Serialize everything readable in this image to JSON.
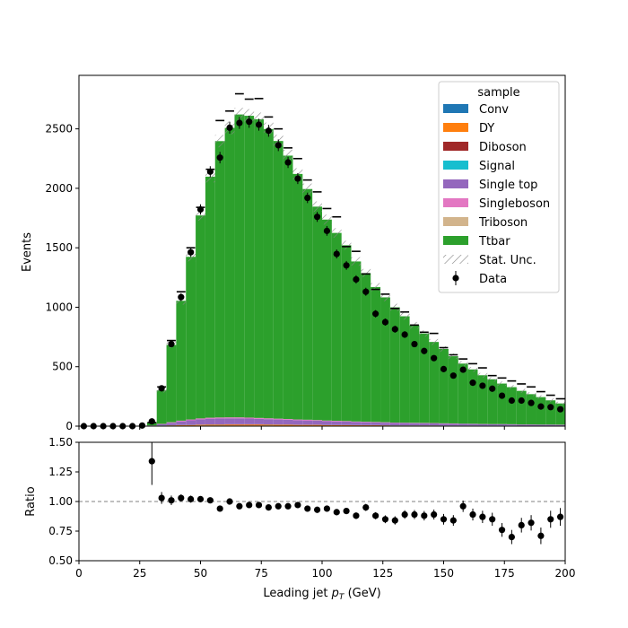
{
  "chart_data": {
    "type": "bar",
    "xlabel": "Leading jet",
    "xlabel_math": "p",
    "xlabel_math_sub": "T",
    "xlabel_unit": "(GeV)",
    "x_range": [
      0,
      200
    ],
    "x_ticks": [
      "0",
      "25",
      "50",
      "75",
      "100",
      "125",
      "150",
      "175",
      "200"
    ],
    "x_tick_values": [
      0,
      25,
      50,
      75,
      100,
      125,
      150,
      175,
      200
    ],
    "bin_width": 4,
    "bin_centers": [
      2,
      6,
      10,
      14,
      18,
      22,
      26,
      30,
      34,
      38,
      42,
      46,
      50,
      54,
      58,
      62,
      66,
      70,
      74,
      78,
      82,
      86,
      90,
      94,
      98,
      102,
      106,
      110,
      114,
      118,
      122,
      126,
      130,
      134,
      138,
      142,
      146,
      150,
      154,
      158,
      162,
      166,
      170,
      174,
      178,
      182,
      186,
      190,
      194,
      198
    ],
    "main": {
      "ylabel": "Events",
      "ylim": [
        0,
        2950
      ],
      "y_ticks": [
        "0",
        "500",
        "1000",
        "1500",
        "2000",
        "2500"
      ],
      "y_tick_values": [
        0,
        500,
        1000,
        1500,
        2000,
        2500
      ],
      "series": [
        {
          "name": "Conv",
          "color": "#1f77b4",
          "values": [
            0,
            0,
            0,
            0,
            0,
            0,
            0,
            1,
            2,
            3,
            4,
            4,
            5,
            5,
            5,
            5,
            5,
            5,
            5,
            5,
            4,
            4,
            4,
            4,
            4,
            3,
            3,
            3,
            3,
            3,
            3,
            2,
            2,
            2,
            2,
            2,
            2,
            2,
            2,
            2,
            2,
            1,
            1,
            1,
            1,
            1,
            1,
            1,
            1,
            1
          ]
        },
        {
          "name": "DY",
          "color": "#ff7f0e",
          "values": [
            0,
            0,
            0,
            0,
            0,
            0,
            0,
            1,
            2,
            3,
            4,
            5,
            6,
            7,
            7,
            8,
            8,
            8,
            8,
            7,
            7,
            7,
            6,
            6,
            6,
            5,
            5,
            5,
            4,
            4,
            4,
            4,
            3,
            3,
            3,
            3,
            3,
            2,
            2,
            2,
            2,
            2,
            2,
            2,
            2,
            1,
            1,
            1,
            1,
            1
          ]
        },
        {
          "name": "Diboson",
          "color": "#a02828",
          "values": [
            0,
            0,
            0,
            0,
            0,
            0,
            0,
            0,
            1,
            1,
            1,
            1,
            1,
            2,
            2,
            2,
            2,
            2,
            2,
            2,
            2,
            2,
            1,
            1,
            1,
            1,
            1,
            1,
            1,
            1,
            1,
            1,
            1,
            1,
            1,
            1,
            1,
            1,
            1,
            1,
            1,
            1,
            1,
            1,
            1,
            1,
            1,
            1,
            1,
            1
          ]
        },
        {
          "name": "Signal",
          "color": "#17becf",
          "values": [
            0,
            0,
            0,
            0,
            0,
            0,
            0,
            0,
            1,
            1,
            1,
            1,
            1,
            1,
            1,
            1,
            1,
            1,
            1,
            1,
            1,
            1,
            1,
            1,
            1,
            1,
            1,
            1,
            1,
            1,
            1,
            1,
            1,
            1,
            1,
            1,
            1,
            1,
            1,
            1,
            1,
            1,
            1,
            1,
            1,
            1,
            1,
            1,
            1,
            1
          ]
        },
        {
          "name": "Single top",
          "color": "#9467bd",
          "values": [
            0,
            0,
            0,
            0,
            0,
            0,
            0,
            3,
            10,
            20,
            30,
            38,
            44,
            48,
            50,
            50,
            50,
            48,
            46,
            44,
            42,
            40,
            38,
            36,
            34,
            32,
            30,
            28,
            26,
            24,
            22,
            21,
            20,
            19,
            18,
            17,
            16,
            15,
            14,
            13,
            12,
            11,
            10,
            10,
            9,
            8,
            8,
            7,
            7,
            6
          ]
        },
        {
          "name": "Singleboson",
          "color": "#e377c2",
          "values": [
            0,
            0,
            0,
            0,
            0,
            0,
            0,
            1,
            3,
            5,
            6,
            7,
            8,
            8,
            8,
            8,
            8,
            8,
            7,
            7,
            7,
            6,
            6,
            6,
            5,
            5,
            5,
            5,
            4,
            4,
            4,
            4,
            3,
            3,
            3,
            3,
            3,
            3,
            3,
            2,
            2,
            2,
            2,
            2,
            2,
            2,
            2,
            2,
            2,
            2
          ]
        },
        {
          "name": "Triboson",
          "color": "#d2b48c",
          "values": [
            0,
            0,
            0,
            0,
            0,
            0,
            0,
            0,
            0,
            0,
            0,
            0,
            0,
            0,
            0,
            0,
            0,
            0,
            0,
            0,
            0,
            0,
            0,
            0,
            0,
            0,
            0,
            0,
            0,
            0,
            0,
            0,
            0,
            0,
            0,
            0,
            0,
            0,
            0,
            0,
            0,
            0,
            0,
            0,
            0,
            0,
            0,
            0,
            0,
            0
          ]
        },
        {
          "name": "Ttbar",
          "color": "#2ca02c",
          "values": [
            0,
            0,
            0,
            0,
            0,
            0,
            0,
            25,
            282,
            650,
            1008,
            1368,
            1707,
            2027,
            2324,
            2434,
            2547,
            2538,
            2512,
            2433,
            2335,
            2215,
            2065,
            1940,
            1795,
            1690,
            1580,
            1478,
            1346,
            1250,
            1135,
            1050,
            969,
            895,
            820,
            752,
            682,
            625,
            565,
            505,
            457,
            410,
            377,
            341,
            312,
            283,
            255,
            231,
            204,
            179
          ]
        }
      ],
      "stat_unc": {
        "name": "Stat. Unc.",
        "values": [
          0,
          0,
          0,
          0,
          0,
          0,
          0,
          8,
          18,
          26,
          32,
          38,
          44,
          48,
          52,
          54,
          56,
          56,
          56,
          54,
          52,
          50,
          48,
          46,
          44,
          42,
          40,
          38,
          36,
          35,
          33,
          32,
          30,
          29,
          28,
          26,
          25,
          24,
          23,
          22,
          21,
          20,
          19,
          18,
          17,
          17,
          16,
          15,
          15,
          14
        ]
      },
      "data": {
        "name": "Data",
        "values": [
          0,
          0,
          0,
          0,
          0,
          0,
          5,
          40,
          318,
          690,
          1085,
          1462,
          1822,
          2140,
          2258,
          2510,
          2550,
          2560,
          2535,
          2484,
          2362,
          2218,
          2082,
          1920,
          1760,
          1642,
          1448,
          1352,
          1234,
          1130,
          945,
          875,
          815,
          770,
          690,
          632,
          572,
          480,
          425,
          475,
          365,
          340,
          315,
          256,
          215,
          215,
          195,
          165,
          160,
          142
        ]
      },
      "data_errors": [
        0,
        0,
        0,
        0,
        0,
        0,
        2,
        6,
        18,
        26,
        33,
        38,
        43,
        46,
        48,
        50,
        50,
        51,
        50,
        50,
        49,
        47,
        46,
        44,
        42,
        41,
        38,
        37,
        35,
        34,
        31,
        30,
        29,
        28,
        26,
        25,
        24,
        22,
        21,
        22,
        19,
        18,
        18,
        16,
        15,
        15,
        14,
        13,
        13,
        12
      ],
      "mc_error_bars": [
        0,
        0,
        0,
        0,
        0,
        0,
        0,
        30,
        330,
        720,
        1130,
        1500,
        1840,
        2160,
        2570,
        2650,
        2795,
        2750,
        2755,
        2600,
        2500,
        2340,
        2250,
        2070,
        1970,
        1830,
        1760,
        1510,
        1470,
        1280,
        1150,
        1110,
        990,
        960,
        850,
        790,
        780,
        660,
        600,
        565,
        525,
        490,
        425,
        405,
        380,
        355,
        330,
        290,
        260,
        230
      ]
    },
    "ratio": {
      "ylabel": "Ratio",
      "ylim": [
        0.5,
        1.5
      ],
      "y_ticks": [
        "0.50",
        "0.75",
        "1.00",
        "1.25",
        "1.50"
      ],
      "y_tick_values": [
        0.5,
        0.75,
        1.0,
        1.25,
        1.5
      ],
      "reference_line": 1.0,
      "values": [
        null,
        null,
        null,
        null,
        null,
        null,
        null,
        1.34,
        1.03,
        1.01,
        1.03,
        1.02,
        1.02,
        1.01,
        0.94,
        1.0,
        0.96,
        0.97,
        0.97,
        0.95,
        0.96,
        0.96,
        0.97,
        0.94,
        0.93,
        0.94,
        0.91,
        0.92,
        0.88,
        0.95,
        0.88,
        0.85,
        0.84,
        0.89,
        0.89,
        0.88,
        0.89,
        0.85,
        0.84,
        0.96,
        0.89,
        0.87,
        0.85,
        0.76,
        0.7,
        0.8,
        0.82,
        0.71,
        0.85,
        0.87
      ],
      "errors": [
        0,
        0,
        0,
        0,
        0,
        0,
        0,
        0.2,
        0.05,
        0.04,
        0.03,
        0.03,
        0.025,
        0.022,
        0.021,
        0.02,
        0.02,
        0.02,
        0.02,
        0.02,
        0.02,
        0.02,
        0.022,
        0.022,
        0.023,
        0.024,
        0.025,
        0.027,
        0.028,
        0.03,
        0.03,
        0.033,
        0.035,
        0.036,
        0.038,
        0.04,
        0.042,
        0.045,
        0.045,
        0.048,
        0.05,
        0.052,
        0.055,
        0.058,
        0.06,
        0.062,
        0.065,
        0.07,
        0.072,
        0.075
      ]
    },
    "legend": {
      "title": "sample",
      "placement": "top-right",
      "entries": [
        {
          "label": "Conv",
          "kind": "patch",
          "color": "#1f77b4"
        },
        {
          "label": "DY",
          "kind": "patch",
          "color": "#ff7f0e"
        },
        {
          "label": "Diboson",
          "kind": "patch",
          "color": "#a02828"
        },
        {
          "label": "Signal",
          "kind": "patch",
          "color": "#17becf"
        },
        {
          "label": "Single top",
          "kind": "patch",
          "color": "#9467bd"
        },
        {
          "label": "Singleboson",
          "kind": "patch",
          "color": "#e377c2"
        },
        {
          "label": "Triboson",
          "kind": "patch",
          "color": "#d2b48c"
        },
        {
          "label": "Ttbar",
          "kind": "patch",
          "color": "#2ca02c"
        },
        {
          "label": "Stat. Unc.",
          "kind": "hatch",
          "color": "#888888"
        },
        {
          "label": "Data",
          "kind": "marker",
          "color": "#000000"
        }
      ]
    }
  }
}
